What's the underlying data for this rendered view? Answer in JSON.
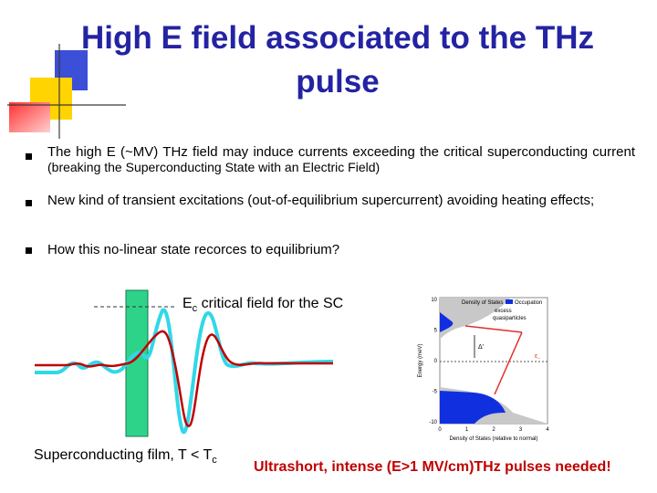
{
  "title": "High E field associated to the THz pulse",
  "bullets": [
    {
      "text": "The high E (~MV) THz field may induce currents exceeding the critical superconducting current",
      "note": "(breaking the Superconducting State with an Electric Field)"
    },
    {
      "text": "New kind of transient excitations (out-of-equilibrium supercurrent) avoiding heating effects;"
    },
    {
      "text": "How this no-linear state recorces to equilibrium?"
    }
  ],
  "figure": {
    "field_label": {
      "symbol": "E",
      "subscript": "c",
      "text": " critical field for the SC"
    },
    "caption": {
      "text": "Superconducting film, T < T",
      "subscript": "c"
    }
  },
  "inset": {
    "legend": [
      "Density of States",
      "Occupation"
    ],
    "annotation": [
      "excess",
      "quasiparticles"
    ],
    "gap_label": "Δ'",
    "level_label": {
      "symbol": "ε",
      "subscript": "−"
    },
    "y_label": "Energy (meV)",
    "yticks": [
      10,
      5,
      0,
      -5,
      -10
    ],
    "x_label": "Density of States (relative to normal)",
    "xticks": [
      0,
      1,
      2,
      3,
      4
    ]
  },
  "footer": "Ultrashort, intense (E>1 MV/cm)THz pulses needed!"
}
